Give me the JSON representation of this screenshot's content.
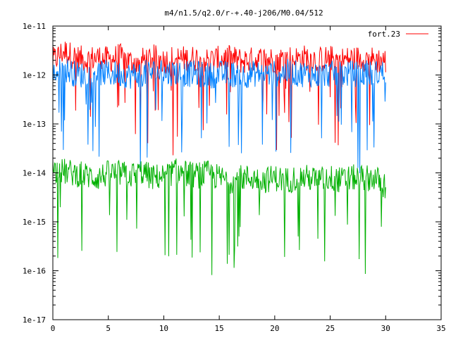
{
  "chart_data": {
    "type": "line",
    "title": "m4/n1.5/q2.0/r-+.40-j206/M0.04/512",
    "xlabel": "",
    "ylabel": "",
    "xlim": [
      0,
      35
    ],
    "ylim": [
      1e-17,
      1e-11
    ],
    "yscale": "log",
    "xticks": [
      "0",
      "5",
      "10",
      "15",
      "20",
      "25",
      "30",
      "35"
    ],
    "yticks": [
      "1e-17",
      "1e-16",
      "1e-15",
      "1e-14",
      "1e-13",
      "1e-12",
      "1e-11"
    ],
    "grid": false,
    "legend": {
      "position": "top-right",
      "entries": [
        "fort.23"
      ]
    },
    "series": [
      {
        "name": "fort.23",
        "color": "#ff0000",
        "style": "noisy",
        "points": [
          [
            0,
            2.2e-12
          ],
          [
            1,
            3.5e-12
          ],
          [
            2,
            2.6e-12
          ],
          [
            3,
            2.3e-12
          ],
          [
            4,
            2.6e-12
          ],
          [
            5,
            2.3e-12
          ],
          [
            6,
            2.7e-12
          ],
          [
            7,
            2.1e-12
          ],
          [
            8,
            2.2e-12
          ],
          [
            9,
            2.6e-12
          ],
          [
            10,
            2.2e-12
          ],
          [
            11,
            2.5e-12
          ],
          [
            12,
            2.4e-12
          ],
          [
            13,
            2.5e-12
          ],
          [
            14,
            2.2e-12
          ],
          [
            15,
            2.4e-12
          ],
          [
            16,
            2.5e-12
          ],
          [
            17,
            2.2e-12
          ],
          [
            18,
            2.3e-12
          ],
          [
            19,
            2.4e-12
          ],
          [
            20,
            2.3e-12
          ],
          [
            21,
            2.5e-12
          ],
          [
            22,
            2.4e-12
          ],
          [
            23,
            2.6e-12
          ],
          [
            24,
            2.3e-12
          ],
          [
            25,
            2.5e-12
          ],
          [
            26,
            2.3e-12
          ],
          [
            27,
            2.4e-12
          ],
          [
            28,
            2.5e-12
          ],
          [
            29,
            2.3e-12
          ],
          [
            30,
            2.2e-12
          ]
        ]
      },
      {
        "color": "#0080ff",
        "style": "noisy",
        "points": [
          [
            0,
            1.2e-12
          ],
          [
            1,
            1.5e-12
          ],
          [
            2,
            1.2e-12
          ],
          [
            3,
            1.1e-12
          ],
          [
            4,
            1.3e-12
          ],
          [
            5,
            1.2e-12
          ],
          [
            6,
            1.2e-12
          ],
          [
            7,
            1.1e-12
          ],
          [
            8,
            1.2e-12
          ],
          [
            9,
            1.3e-12
          ],
          [
            10,
            1.2e-12
          ],
          [
            11,
            1.3e-12
          ],
          [
            12,
            1.2e-12
          ],
          [
            13,
            1.2e-12
          ],
          [
            14,
            1.1e-12
          ],
          [
            15,
            1.2e-12
          ],
          [
            16,
            1.2e-12
          ],
          [
            17,
            1.1e-12
          ],
          [
            18,
            1.2e-12
          ],
          [
            19,
            1.2e-12
          ],
          [
            20,
            1.2e-12
          ],
          [
            21,
            1.3e-12
          ],
          [
            22,
            1.2e-12
          ],
          [
            23,
            1.2e-12
          ],
          [
            24,
            1.1e-12
          ],
          [
            25,
            1.2e-12
          ],
          [
            26,
            1.2e-12
          ],
          [
            27,
            1.2e-12
          ],
          [
            28,
            1.2e-12
          ],
          [
            29,
            1.2e-12
          ],
          [
            30,
            1.3e-12
          ]
        ]
      },
      {
        "color": "#00b000",
        "style": "noisy",
        "points": [
          [
            0,
            1.3e-14
          ],
          [
            1,
            1.2e-14
          ],
          [
            2,
            1.1e-14
          ],
          [
            3,
            1e-14
          ],
          [
            4,
            9e-15
          ],
          [
            5,
            1.1e-14
          ],
          [
            6,
            1.1e-14
          ],
          [
            7,
            1e-14
          ],
          [
            8,
            1.2e-14
          ],
          [
            9,
            9e-15
          ],
          [
            10,
            1e-14
          ],
          [
            11,
            1.2e-14
          ],
          [
            12,
            1.1e-14
          ],
          [
            13,
            1e-14
          ],
          [
            14,
            1.1e-14
          ],
          [
            15,
            9e-15
          ],
          [
            16,
            8e-15
          ],
          [
            17,
            9e-15
          ],
          [
            18,
            9e-15
          ],
          [
            19,
            8e-15
          ],
          [
            20,
            9e-15
          ],
          [
            21,
            8e-15
          ],
          [
            22,
            9e-15
          ],
          [
            23,
            9e-15
          ],
          [
            24,
            8e-15
          ],
          [
            25,
            9e-15
          ],
          [
            26,
            8e-15
          ],
          [
            27,
            9e-15
          ],
          [
            28,
            9e-15
          ],
          [
            29,
            9e-15
          ],
          [
            30,
            6e-15
          ]
        ]
      }
    ]
  }
}
